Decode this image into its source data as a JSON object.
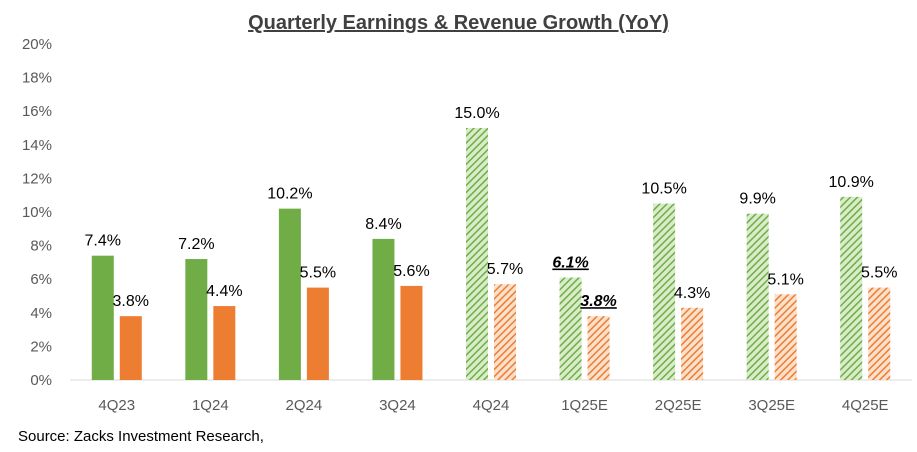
{
  "chart_data": {
    "type": "bar",
    "title": "Quarterly Earnings & Revenue Growth (YoY)",
    "categories": [
      "4Q23",
      "1Q24",
      "2Q24",
      "3Q24",
      "4Q24",
      "1Q25E",
      "2Q25E",
      "3Q25E",
      "4Q25E"
    ],
    "series": [
      {
        "values": [
          7.4,
          7.2,
          10.2,
          8.4,
          15.0,
          6.1,
          10.5,
          9.9,
          10.9
        ],
        "labels": [
          "7.4%",
          "7.2%",
          "10.2%",
          "8.4%",
          "15.0%",
          "6.1%",
          "10.5%",
          "9.9%",
          "10.9%"
        ],
        "color": "#70AD47"
      },
      {
        "values": [
          3.8,
          4.4,
          5.5,
          5.6,
          5.7,
          3.8,
          4.3,
          5.1,
          5.5
        ],
        "labels": [
          "3.8%",
          "4.4%",
          "5.5%",
          "5.6%",
          "5.7%",
          "3.8%",
          "4.3%",
          "5.1%",
          "5.5%"
        ],
        "color": "#ED7D31"
      }
    ],
    "hatched_from_category": "4Q24",
    "emphasized_category": "1Q25E",
    "ylim": [
      0,
      20
    ],
    "yticks": [
      0,
      2,
      4,
      6,
      8,
      10,
      12,
      14,
      16,
      18,
      20
    ],
    "ytick_labels": [
      "0%",
      "2%",
      "4%",
      "6%",
      "8%",
      "10%",
      "12%",
      "14%",
      "16%",
      "18%",
      "20%"
    ],
    "grid": false,
    "legend": "none"
  },
  "source": "Source: Zacks Investment Research,"
}
